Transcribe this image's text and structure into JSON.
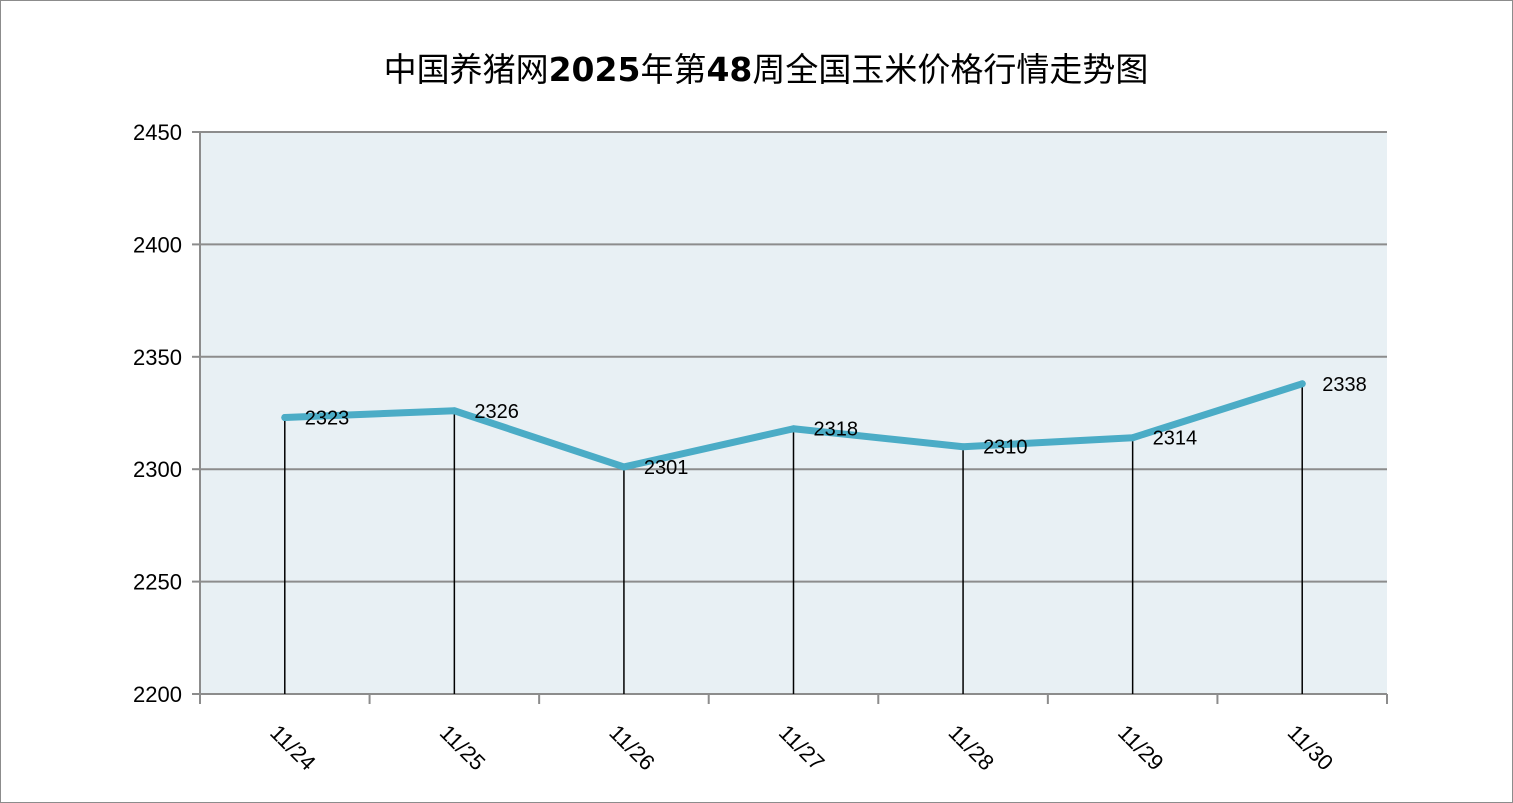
{
  "chart_data": {
    "type": "line",
    "title": "中国养猪网2025年第48周全国玉米价格行情走势图",
    "title_parts": [
      "中国养猪网",
      "2025",
      "年第",
      "48",
      "周全国玉米价格行情走势图"
    ],
    "xlabel": "",
    "ylabel": "",
    "categories": [
      "11/24",
      "11/25",
      "11/26",
      "11/27",
      "11/28",
      "11/29",
      "11/30"
    ],
    "series": [
      {
        "values": [
          2323,
          2326,
          2301,
          2318,
          2310,
          2314,
          2338
        ]
      }
    ],
    "ylim": [
      2200,
      2450
    ],
    "yticks": [
      2200,
      2250,
      2300,
      2350,
      2400,
      2450
    ],
    "grid": true,
    "drop_lines": true,
    "data_labels": true,
    "legend": "none",
    "colors": {
      "line": "#4bacc6",
      "plot_background": "#e8f0f4",
      "gridline": "#8c8c8c",
      "drop_line": "#000000"
    }
  }
}
